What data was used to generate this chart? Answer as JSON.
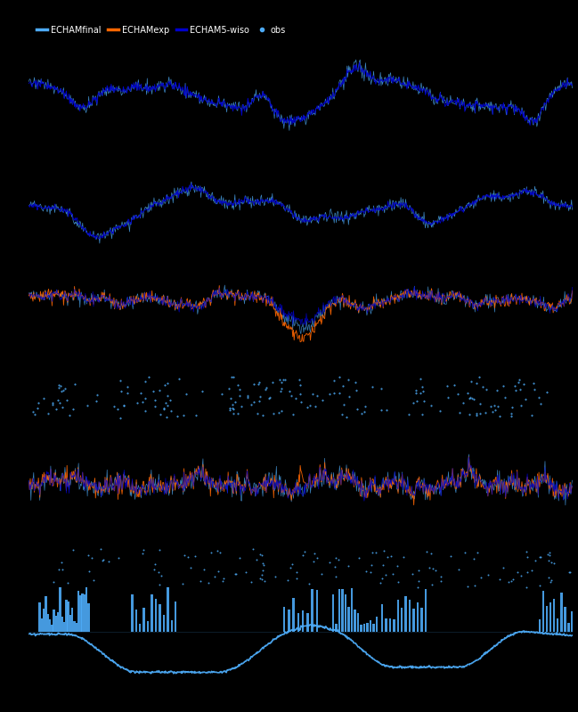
{
  "bg_color": "#000000",
  "light_blue": "#4dabf7",
  "dark_blue": "#0000cd",
  "orange": "#ff6600",
  "sky_blue": "#1e90ff",
  "n_points": 800,
  "legend_labels": [
    "ECHAMfinal",
    "ECHAMexp",
    "ECHAM5-wiso",
    "obs"
  ],
  "heights": [
    1.0,
    1.0,
    0.85,
    0.7,
    0.85,
    1.7
  ]
}
